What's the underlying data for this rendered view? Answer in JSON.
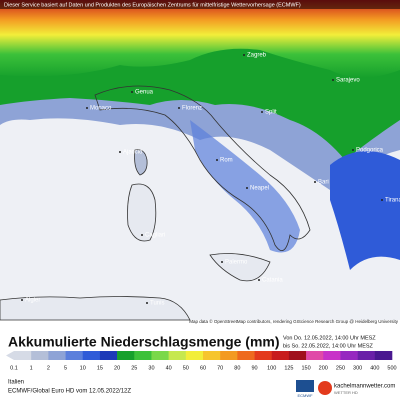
{
  "header": {
    "notice": "Dieser Service basiert auf Daten und Produkten des Europäischen Zentrums für mittelfristige Wettervorhersage (ECMWF)"
  },
  "map": {
    "cities": [
      "Zagreb",
      "Split",
      "Sarajevo",
      "Podgorica",
      "Tirana",
      "Genua",
      "Florenz",
      "Monaco",
      "Ajaccio",
      "Rom",
      "Neapel",
      "Bari",
      "Cagliari",
      "Palermo",
      "Catania",
      "Algier",
      "Tunis"
    ],
    "attribution": "Map data © OpenStreetMap contributors, rendering GIScience Research Group @ Heidelberg University"
  },
  "legend": {
    "title": "Akkumulierte Niederschlagsmenge (mm)",
    "period_from": "Von Do. 12.05.2022, 14:00 Uhr MESZ",
    "period_to": "bis So. 22.05.2022, 14:00 Uhr MESZ",
    "labels": [
      "0.1",
      "1",
      "2",
      "5",
      "10",
      "15",
      "20",
      "25",
      "30",
      "40",
      "50",
      "60",
      "70",
      "80",
      "90",
      "100",
      "125",
      "150",
      "200",
      "250",
      "300",
      "400",
      "500"
    ],
    "colors": [
      "#d6dbe6",
      "#b4bfd8",
      "#8ea3d6",
      "#5b7fdc",
      "#2f5bd8",
      "#1d3ab8",
      "#16a02c",
      "#3cc13a",
      "#7ad84a",
      "#c6e84e",
      "#f2ee3a",
      "#f6c52e",
      "#f39a22",
      "#ee6a1e",
      "#e33a1c",
      "#c81c1c",
      "#a0101c",
      "#e04aa8",
      "#c832c8",
      "#9628c0",
      "#6a20a8",
      "#4a1890"
    ]
  },
  "footer": {
    "region": "Italien",
    "model": "ECMWF/Global Euro HD vom 12.05.2022/12Z",
    "logo_left": "ECMWF",
    "logo_right": "kachelmannwetter.com",
    "logo_right_sub": "WETTER HD"
  }
}
